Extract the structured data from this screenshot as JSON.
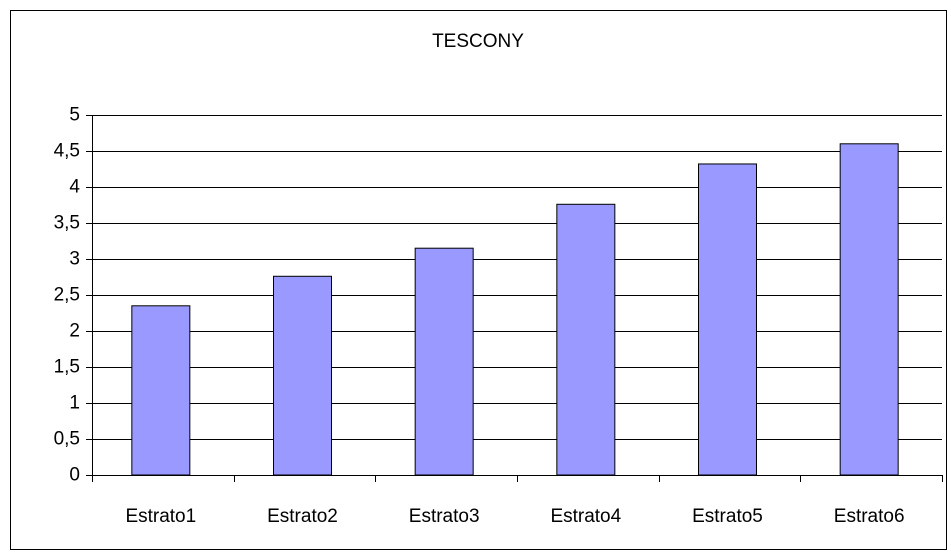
{
  "chart_data": {
    "type": "bar",
    "title": "TESCONY",
    "categories": [
      "Estrato1",
      "Estrato2",
      "Estrato3",
      "Estrato4",
      "Estrato5",
      "Estrato6"
    ],
    "values": [
      2.35,
      2.76,
      3.15,
      3.76,
      4.32,
      4.6
    ],
    "color": "#9999ff",
    "ylim": [
      0,
      5
    ],
    "yticks": [
      0,
      {
        "value": 0.5,
        "label": "0,5"
      },
      1,
      {
        "value": 1.5,
        "label": "1,5"
      },
      2,
      {
        "value": 2.5,
        "label": "2,5"
      },
      3,
      {
        "value": 3.5,
        "label": "3,5"
      },
      4,
      {
        "value": 4.5,
        "label": "4,5"
      },
      5
    ],
    "grid": true
  }
}
